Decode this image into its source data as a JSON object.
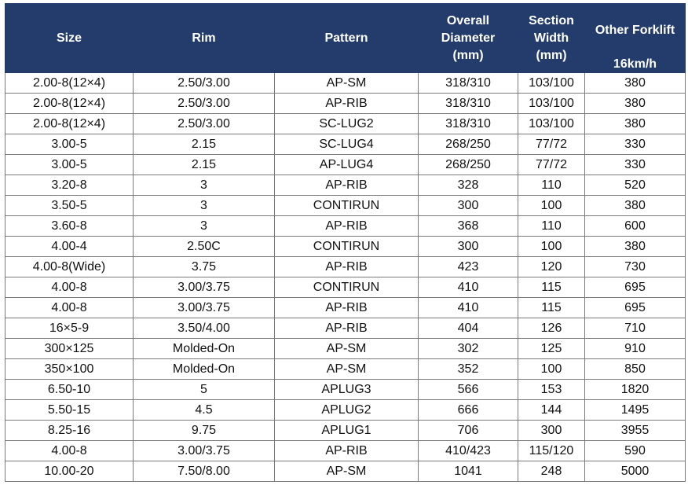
{
  "table": {
    "headers": [
      [
        "Size"
      ],
      [
        "Rim"
      ],
      [
        "Pattern"
      ],
      [
        "Overall",
        "Diameter",
        "(mm)"
      ],
      [
        "Section",
        "Width",
        "(mm)"
      ],
      [
        "Other Forklift",
        "16km/h"
      ]
    ],
    "rows": [
      [
        "2.00-8(12×4)",
        "2.50/3.00",
        "AP-SM",
        "318/310",
        "103/100",
        "380"
      ],
      [
        "2.00-8(12×4)",
        "2.50/3.00",
        "AP-RIB",
        "318/310",
        "103/100",
        "380"
      ],
      [
        "2.00-8(12×4)",
        "2.50/3.00",
        "SC-LUG2",
        "318/310",
        "103/100",
        "380"
      ],
      [
        "3.00-5",
        "2.15",
        "SC-LUG4",
        "268/250",
        "77/72",
        "330"
      ],
      [
        "3.00-5",
        "2.15",
        "AP-LUG4",
        "268/250",
        "77/72",
        "330"
      ],
      [
        "3.20-8",
        "3",
        "AP-RIB",
        "328",
        "110",
        "520"
      ],
      [
        "3.50-5",
        "3",
        "CONTIRUN",
        "300",
        "100",
        "380"
      ],
      [
        "3.60-8",
        "3",
        "AP-RIB",
        "368",
        "110",
        "600"
      ],
      [
        "4.00-4",
        "2.50C",
        "CONTIRUN",
        "300",
        "100",
        "380"
      ],
      [
        "4.00-8(Wide)",
        "3.75",
        "AP-RIB",
        "423",
        "120",
        "730"
      ],
      [
        "4.00-8",
        "3.00/3.75",
        "CONTIRUN",
        "410",
        "115",
        "695"
      ],
      [
        "4.00-8",
        "3.00/3.75",
        "AP-RIB",
        "410",
        "115",
        "695"
      ],
      [
        "16×5-9",
        "3.50/4.00",
        "AP-RIB",
        "404",
        "126",
        "710"
      ],
      [
        "300×125",
        "Molded-On",
        "AP-SM",
        "302",
        "125",
        "910"
      ],
      [
        "350×100",
        "Molded-On",
        "AP-SM",
        "352",
        "100",
        "850"
      ],
      [
        "6.50-10",
        "5",
        "APLUG3",
        "566",
        "153",
        "1820"
      ],
      [
        "5.50-15",
        "4.5",
        "APLUG2",
        "666",
        "144",
        "1495"
      ],
      [
        "8.25-16",
        "9.75",
        "APLUG1",
        "706",
        "300",
        "3955"
      ],
      [
        "4.00-8",
        "3.00/3.75",
        "AP-RIB",
        "410/423",
        "115/120",
        "590"
      ],
      [
        "10.00-20",
        "7.50/8.00",
        "AP-SM",
        "1041",
        "248",
        "5000"
      ]
    ]
  },
  "colors": {
    "header_background": "#243c6c",
    "header_text": "#ffffff",
    "grid_line": "#7a7a7a"
  }
}
